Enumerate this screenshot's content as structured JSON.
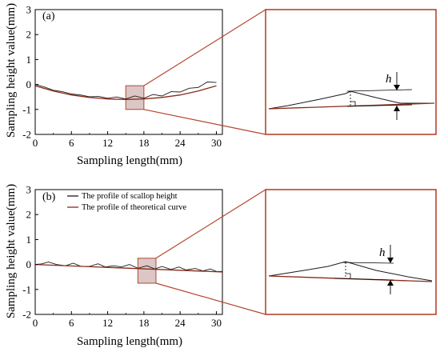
{
  "colors": {
    "profile": "#1a1a1a",
    "theory": "#8b2a1a",
    "zoom_box": "#b3472e",
    "highlight_fill": "#dcc6c6"
  },
  "chart_data": [
    {
      "type": "line",
      "panel_label": "(a)",
      "xlabel": "Sampling length(mm)",
      "ylabel": "Sampling height value(mm)",
      "xlim": [
        0,
        31
      ],
      "ylim": [
        -2,
        3
      ],
      "xticks": [
        "0",
        "6",
        "12",
        "18",
        "24",
        "30"
      ],
      "yticks": [
        "-2",
        "-1",
        "0",
        "1",
        "2",
        "3"
      ],
      "legend": [],
      "series": [
        {
          "name": "",
          "role": "scallop",
          "x": [
            0,
            1.5,
            3,
            4.5,
            6,
            7.5,
            9,
            10.5,
            12,
            13.5,
            15,
            16.5,
            18,
            19.5,
            21,
            22.5,
            24,
            25.5,
            27,
            28.5,
            30
          ],
          "y": [
            0.0,
            -0.1,
            -0.23,
            -0.29,
            -0.38,
            -0.42,
            -0.49,
            -0.48,
            -0.55,
            -0.5,
            -0.58,
            -0.46,
            -0.55,
            -0.4,
            -0.46,
            -0.29,
            -0.3,
            -0.15,
            -0.12,
            0.1,
            0.08
          ]
        },
        {
          "name": "",
          "role": "theory",
          "x": [
            0,
            3,
            6,
            9,
            12,
            15,
            18,
            21,
            24,
            27,
            30
          ],
          "y": [
            -0.05,
            -0.26,
            -0.42,
            -0.52,
            -0.58,
            -0.6,
            -0.58,
            -0.52,
            -0.42,
            -0.26,
            -0.05
          ]
        }
      ],
      "highlight": {
        "x": [
          15,
          18
        ],
        "y": [
          -1.0,
          -0.05
        ]
      },
      "inset_label": "h"
    },
    {
      "type": "line",
      "panel_label": "(b)",
      "xlabel": "Sampling length(mm)",
      "ylabel": "Sampling height value(mm)",
      "xlim": [
        0,
        31
      ],
      "ylim": [
        -2,
        3
      ],
      "xticks": [
        "0",
        "6",
        "12",
        "18",
        "24",
        "30"
      ],
      "yticks": [
        "-2",
        "-1",
        "0",
        "1",
        "2",
        "3"
      ],
      "legend": [
        "The profile of scallop height",
        "The profile of theoretical curve"
      ],
      "series": [
        {
          "name": "The profile of scallop height",
          "role": "scallop",
          "x": [
            0,
            1,
            2.2,
            3.5,
            5,
            6.3,
            7.6,
            9,
            10.4,
            11.6,
            13,
            14.3,
            15.6,
            17,
            18.5,
            19.8,
            21,
            22.5,
            23.8,
            25,
            26.5,
            27.8,
            29,
            30,
            31
          ],
          "y": [
            0.0,
            0.02,
            0.1,
            0.0,
            -0.05,
            0.05,
            -0.08,
            -0.08,
            0.03,
            -0.1,
            -0.05,
            -0.1,
            0.0,
            -0.15,
            -0.05,
            -0.18,
            -0.08,
            -0.2,
            -0.1,
            -0.22,
            -0.16,
            -0.26,
            -0.18,
            -0.28,
            -0.28
          ]
        },
        {
          "name": "The profile of theoretical curve",
          "role": "theory",
          "x": [
            0,
            31
          ],
          "y": [
            0.0,
            -0.3
          ]
        }
      ],
      "highlight": {
        "x": [
          17,
          20
        ],
        "y": [
          -0.75,
          0.25
        ]
      },
      "inset_label": "h"
    }
  ]
}
